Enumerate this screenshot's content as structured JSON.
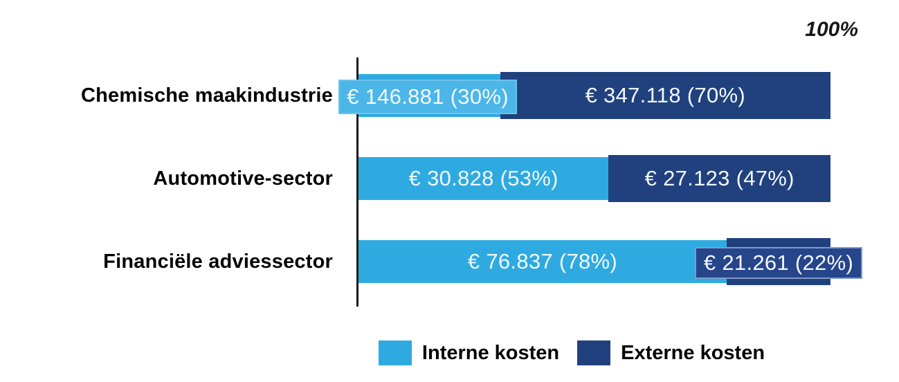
{
  "chart_data": {
    "type": "bar",
    "orientation": "horizontal",
    "stacked": true,
    "axis_annotation": "100%",
    "categories": [
      "Chemische maakindustrie",
      "Automotive-sector",
      "Financiële adviessector"
    ],
    "series": [
      {
        "name": "Interne kosten",
        "color": "#2faae1",
        "label_box_color": "#4cb6e8",
        "values": [
          146881,
          30828,
          76837
        ],
        "percents": [
          30,
          53,
          78
        ],
        "labels": [
          "€ 146.881 (30%)",
          "€ 30.828 (53%)",
          "€ 76.837 (78%)"
        ]
      },
      {
        "name": "Externe kosten",
        "color": "#21407e",
        "label_box_color": "#27458a",
        "values": [
          347118,
          27123,
          21261
        ],
        "percents": [
          70,
          47,
          22
        ],
        "labels": [
          "€ 347.118 (70%)",
          "€ 27.123 (47%)",
          "€ 21.261 (22%)"
        ]
      }
    ],
    "legend": [
      {
        "label": "Interne kosten",
        "color": "#2faae1"
      },
      {
        "label": "Externe kosten",
        "color": "#21407e"
      }
    ],
    "axis_color": "#1b1b1b",
    "value_text_color": "#f2fafd",
    "category_text_color": "#000000",
    "xlim": [
      0,
      100
    ]
  }
}
